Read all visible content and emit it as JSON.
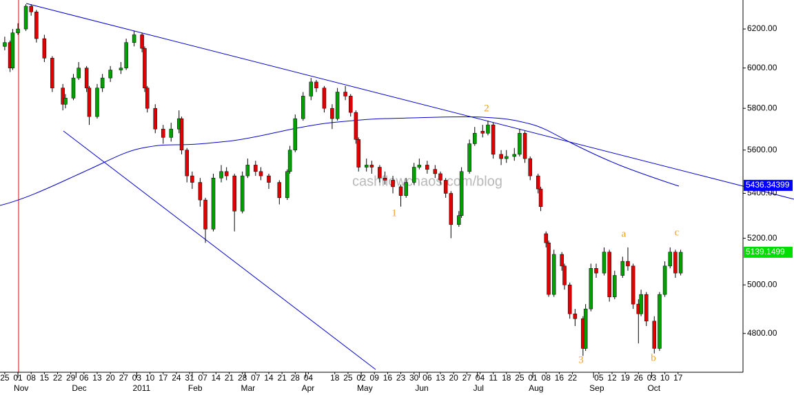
{
  "chart_data": {
    "type": "candlestick",
    "log_scale": true,
    "up_color": "#00a000",
    "down_color": "#e00000",
    "x": [
      0,
      2,
      3,
      5,
      8,
      10,
      12,
      15,
      18,
      22,
      23,
      26,
      28,
      31,
      32,
      35,
      37,
      40,
      44,
      46,
      49,
      52,
      53,
      54,
      57,
      60,
      63,
      66,
      67,
      69,
      71,
      74,
      76,
      79,
      82,
      84,
      87,
      90,
      92,
      95,
      97,
      100,
      104,
      107,
      108,
      110,
      113,
      116,
      118,
      121,
      124,
      126,
      129,
      131,
      133,
      134,
      137,
      139,
      142,
      144,
      147,
      150,
      152,
      155,
      157,
      160,
      163,
      165,
      167,
      169,
      172,
      173,
      176,
      178,
      181,
      183,
      185,
      188,
      190,
      193,
      195,
      197,
      199,
      202,
      203,
      205,
      206,
      208,
      211,
      212,
      214,
      216,
      219,
      220,
      222,
      224,
      227,
      229,
      231,
      234,
      236,
      238,
      240,
      241,
      243,
      246,
      248,
      250,
      252,
      254,
      256
    ],
    "open": [
      6110,
      6130,
      6000,
      6180,
      6200,
      6320,
      6290,
      6150,
      6050,
      5900,
      5820,
      5850,
      5950,
      6000,
      5900,
      5760,
      5900,
      5950,
      5990,
      6000,
      6130,
      6170,
      6100,
      5900,
      5800,
      5700,
      5660,
      5700,
      5750,
      5600,
      5480,
      5450,
      5370,
      5240,
      5470,
      5500,
      5480,
      5320,
      5480,
      5530,
      5500,
      5480,
      5450,
      5380,
      5500,
      5600,
      5750,
      5860,
      5930,
      5900,
      5800,
      5750,
      5880,
      5860,
      5780,
      5650,
      5520,
      5530,
      5520,
      5470,
      5460,
      5430,
      5390,
      5450,
      5520,
      5530,
      5510,
      5490,
      5460,
      5400,
      5260,
      5300,
      5500,
      5630,
      5690,
      5680,
      5720,
      5580,
      5560,
      5570,
      5580,
      5680,
      5560,
      5480,
      5420,
      5220,
      5180,
      4960,
      5130,
      5080,
      5000,
      4880,
      4860,
      4740,
      4900,
      5070,
      5050,
      5140,
      4950,
      5040,
      5100,
      5080,
      4920,
      4880,
      4960,
      4850,
      4740,
      4960,
      5080,
      5140,
      5050
    ],
    "high": [
      6160,
      6140,
      6200,
      6230,
      6330,
      6330,
      6300,
      6170,
      6060,
      5920,
      5870,
      5970,
      6030,
      6010,
      5910,
      5920,
      5970,
      6010,
      6030,
      6150,
      6190,
      6180,
      6110,
      5910,
      5820,
      5720,
      5730,
      5790,
      5760,
      5610,
      5500,
      5470,
      5380,
      5490,
      5530,
      5520,
      5490,
      5500,
      5560,
      5550,
      5520,
      5490,
      5460,
      5510,
      5620,
      5770,
      5880,
      5950,
      5940,
      5910,
      5820,
      5900,
      5910,
      5870,
      5790,
      5660,
      5560,
      5550,
      5530,
      5500,
      5480,
      5440,
      5470,
      5540,
      5560,
      5550,
      5530,
      5500,
      5470,
      5410,
      5320,
      5520,
      5650,
      5710,
      5720,
      5740,
      5730,
      5600,
      5600,
      5610,
      5700,
      5690,
      5570,
      5490,
      5430,
      5230,
      5190,
      5150,
      5140,
      5090,
      5010,
      4900,
      4870,
      4920,
      5090,
      5090,
      5160,
      5150,
      5060,
      5120,
      5160,
      5090,
      4940,
      4980,
      4970,
      4870,
      4970,
      5100,
      5160,
      5150,
      5150
    ],
    "low": [
      6090,
      5980,
      5990,
      6170,
      6190,
      6270,
      6130,
      6030,
      5880,
      5790,
      5800,
      5840,
      5940,
      5880,
      5720,
      5750,
      5880,
      5930,
      5970,
      5990,
      6110,
      6080,
      5880,
      5780,
      5680,
      5630,
      5640,
      5680,
      5580,
      5450,
      5420,
      5340,
      5180,
      5230,
      5450,
      5460,
      5230,
      5310,
      5470,
      5480,
      5460,
      5420,
      5350,
      5370,
      5490,
      5590,
      5740,
      5840,
      5880,
      5780,
      5700,
      5740,
      5840,
      5760,
      5630,
      5500,
      5500,
      5490,
      5450,
      5440,
      5400,
      5340,
      5380,
      5440,
      5510,
      5490,
      5470,
      5440,
      5380,
      5200,
      5250,
      5290,
      5490,
      5620,
      5660,
      5670,
      5560,
      5530,
      5540,
      5550,
      5570,
      5540,
      5460,
      5400,
      5320,
      5160,
      4950,
      4950,
      5060,
      4980,
      4860,
      4830,
      4710,
      4730,
      4890,
      5030,
      5040,
      4930,
      4940,
      5030,
      5060,
      4900,
      4760,
      4870,
      4830,
      4720,
      4730,
      4950,
      5070,
      5030,
      5040
    ],
    "close": [
      6130,
      6000,
      6180,
      6200,
      6320,
      6290,
      6150,
      6050,
      5900,
      5820,
      5850,
      5950,
      6000,
      5900,
      5760,
      5900,
      5950,
      5990,
      6000,
      6130,
      6170,
      6100,
      5900,
      5800,
      5700,
      5660,
      5700,
      5750,
      5600,
      5480,
      5450,
      5370,
      5240,
      5470,
      5500,
      5480,
      5320,
      5480,
      5530,
      5500,
      5480,
      5450,
      5380,
      5500,
      5600,
      5750,
      5860,
      5930,
      5900,
      5800,
      5750,
      5880,
      5860,
      5780,
      5650,
      5520,
      5530,
      5520,
      5470,
      5460,
      5430,
      5390,
      5450,
      5520,
      5530,
      5510,
      5490,
      5460,
      5400,
      5260,
      5300,
      5500,
      5630,
      5680,
      5680,
      5720,
      5580,
      5560,
      5570,
      5580,
      5680,
      5560,
      5480,
      5420,
      5340,
      5180,
      4960,
      5130,
      5080,
      5000,
      4880,
      4860,
      4740,
      4900,
      5070,
      5050,
      5140,
      4950,
      5040,
      5100,
      5080,
      4920,
      4880,
      4960,
      4850,
      4740,
      4960,
      5080,
      5140,
      5050,
      5139.1499
    ],
    "xlim": [
      -1.8,
      279.6
    ],
    "ylim": [
      4646,
      6353
    ],
    "yticks": [
      {
        "value": 4800,
        "label": "4800.00"
      },
      {
        "value": 5000,
        "label": "5000.00"
      },
      {
        "value": 5200,
        "label": "5200.00"
      },
      {
        "value": 5400,
        "label": "5400.00"
      },
      {
        "value": 5600,
        "label": "5600.00"
      },
      {
        "value": 5800,
        "label": "5800.00"
      },
      {
        "value": 6000,
        "label": "6000.00"
      },
      {
        "value": 6200,
        "label": "6200.00"
      }
    ],
    "xticks": [
      {
        "value": 0,
        "label": "25"
      },
      {
        "value": 5,
        "label": "01"
      },
      {
        "value": 10,
        "label": "08"
      },
      {
        "value": 15,
        "label": "15"
      },
      {
        "value": 20,
        "label": "22"
      },
      {
        "value": 25,
        "label": "29"
      },
      {
        "value": 30,
        "label": "06"
      },
      {
        "value": 35,
        "label": "13"
      },
      {
        "value": 40,
        "label": "20"
      },
      {
        "value": 45,
        "label": "27"
      },
      {
        "value": 50,
        "label": "03"
      },
      {
        "value": 55,
        "label": "10"
      },
      {
        "value": 60,
        "label": "17"
      },
      {
        "value": 65,
        "label": "24"
      },
      {
        "value": 70,
        "label": "31"
      },
      {
        "value": 75,
        "label": "07"
      },
      {
        "value": 80,
        "label": "14"
      },
      {
        "value": 85,
        "label": "21"
      },
      {
        "value": 90,
        "label": "28"
      },
      {
        "value": 95,
        "label": "07"
      },
      {
        "value": 100,
        "label": "14"
      },
      {
        "value": 105,
        "label": "21"
      },
      {
        "value": 110,
        "label": "28"
      },
      {
        "value": 115,
        "label": "04"
      },
      {
        "value": 125,
        "label": "18"
      },
      {
        "value": 130,
        "label": "25"
      },
      {
        "value": 135,
        "label": "02"
      },
      {
        "value": 140,
        "label": "09"
      },
      {
        "value": 145,
        "label": "16"
      },
      {
        "value": 150,
        "label": "23"
      },
      {
        "value": 155,
        "label": "30"
      },
      {
        "value": 160,
        "label": "06"
      },
      {
        "value": 165,
        "label": "13"
      },
      {
        "value": 170,
        "label": "20"
      },
      {
        "value": 175,
        "label": "27"
      },
      {
        "value": 180,
        "label": "04"
      },
      {
        "value": 185,
        "label": "11"
      },
      {
        "value": 190,
        "label": "18"
      },
      {
        "value": 195,
        "label": "25"
      },
      {
        "value": 200,
        "label": "01"
      },
      {
        "value": 205,
        "label": "08"
      },
      {
        "value": 210,
        "label": "16"
      },
      {
        "value": 215,
        "label": "22"
      },
      {
        "value": 225,
        "label": "05"
      },
      {
        "value": 230,
        "label": "12"
      },
      {
        "value": 235,
        "label": "19"
      },
      {
        "value": 240,
        "label": "26"
      },
      {
        "value": 245,
        "label": "03"
      },
      {
        "value": 250,
        "label": "10"
      },
      {
        "value": 255,
        "label": "17"
      }
    ],
    "month_ticks": [
      {
        "value": 5,
        "label": "Nov"
      },
      {
        "value": 27,
        "label": "Dec"
      },
      {
        "value": 50,
        "label": "2011"
      },
      {
        "value": 71,
        "label": "Feb"
      },
      {
        "value": 91,
        "label": "Mar"
      },
      {
        "value": 114,
        "label": "Apr"
      },
      {
        "value": 135,
        "label": "May"
      },
      {
        "value": 157,
        "label": "Jun"
      },
      {
        "value": 179,
        "label": "Jul"
      },
      {
        "value": 200,
        "label": "Aug"
      },
      {
        "value": 223,
        "label": "Sep"
      },
      {
        "value": 245,
        "label": "Oct"
      }
    ],
    "price_labels": [
      {
        "value": 5436.34399,
        "label": "5436.34399",
        "color": "#0000ff"
      },
      {
        "value": 5139.1499,
        "label": "5139.1499",
        "color": "#00dd00"
      }
    ],
    "annotations": [
      "1",
      "2",
      "3",
      "a",
      "b",
      "c"
    ],
    "watermark": "cashflowchaos.com/blog"
  }
}
